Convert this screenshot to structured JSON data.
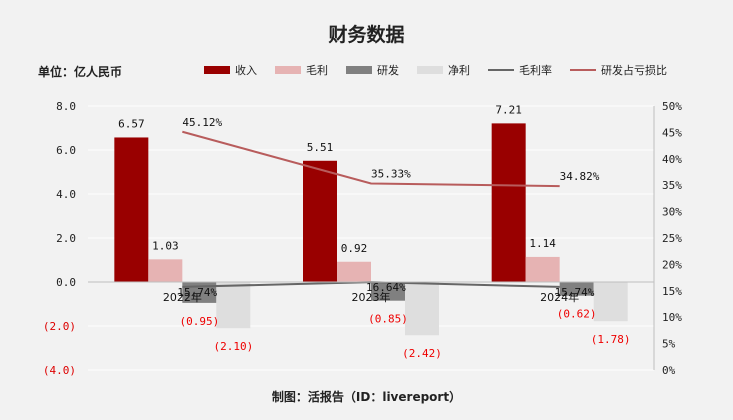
{
  "title": "财务数据",
  "unit_label": "单位：亿人民币",
  "credit": "制图：活报告（ID：livereport）",
  "legend": [
    {
      "name": "收入",
      "kind": "bar",
      "color": "#990000"
    },
    {
      "name": "毛利",
      "kind": "bar",
      "color": "#e6b3b3"
    },
    {
      "name": "研发",
      "kind": "bar",
      "color": "#808080"
    },
    {
      "name": "净利",
      "kind": "bar",
      "color": "#dedede"
    },
    {
      "name": "毛利率",
      "kind": "line",
      "color": "#666666"
    },
    {
      "name": "研发占亏损比",
      "kind": "line",
      "color": "#b85c5c"
    }
  ],
  "chart_data": {
    "type": "bar",
    "categories": [
      "2022年",
      "2023年",
      "2024年"
    ],
    "series": [
      {
        "name": "收入",
        "values": [
          6.57,
          5.51,
          7.21
        ],
        "labels": [
          "6.57",
          "5.51",
          "7.21"
        ],
        "color": "#990000"
      },
      {
        "name": "毛利",
        "values": [
          1.03,
          0.92,
          1.14
        ],
        "labels": [
          "1.03",
          "0.92",
          "1.14"
        ],
        "color": "#e6b3b3"
      },
      {
        "name": "研发",
        "values": [
          -0.95,
          -0.85,
          -0.62
        ],
        "labels": [
          "(0.95)",
          "(0.85)",
          "(0.62)"
        ],
        "color": "#808080"
      },
      {
        "name": "净利",
        "values": [
          -2.1,
          -2.42,
          -1.78
        ],
        "labels": [
          "(2.10)",
          "(2.42)",
          "(1.78)"
        ],
        "color": "#dedede"
      }
    ],
    "line_series": [
      {
        "name": "毛利率",
        "axis": "right",
        "values": [
          15.74,
          16.64,
          15.74
        ],
        "labels": [
          "15.74%",
          "16.64%",
          "15.74%"
        ],
        "color": "#666666"
      },
      {
        "name": "研发占亏损比",
        "axis": "right",
        "values": [
          45.12,
          35.33,
          34.82
        ],
        "labels": [
          "45.12%",
          "35.33%",
          "34.82%"
        ],
        "color": "#b85c5c"
      }
    ],
    "y_left": {
      "min": -4,
      "max": 8,
      "ticks": [
        8.0,
        6.0,
        4.0,
        2.0,
        0.0,
        -2.0,
        -4.0
      ],
      "tick_labels": [
        "8.0",
        "6.0",
        "4.0",
        "2.0",
        "0.0",
        "(2.0)",
        "(4.0)"
      ]
    },
    "y_right": {
      "min": 0,
      "max": 50,
      "ticks": [
        50,
        45,
        40,
        35,
        30,
        25,
        20,
        15,
        10,
        5,
        0
      ],
      "tick_labels": [
        "50%",
        "45%",
        "40%",
        "35%",
        "30%",
        "25%",
        "20%",
        "15%",
        "10%",
        "5%",
        "0%"
      ]
    },
    "grid": true,
    "legend_position": "top"
  }
}
